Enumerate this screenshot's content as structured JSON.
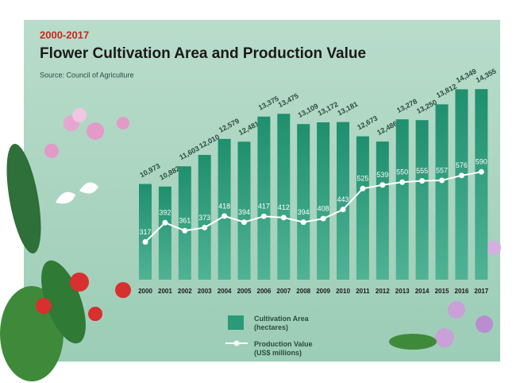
{
  "chart_data": {
    "type": "bar_line",
    "subtitle_top": "2000-2017",
    "title": "Flower Cultivation Area and Production Value",
    "source": "Source: Council of Agriculture",
    "categories": [
      "2000",
      "2001",
      "2002",
      "2003",
      "2004",
      "2005",
      "2006",
      "2007",
      "2008",
      "2009",
      "2010",
      "2011",
      "2012",
      "2013",
      "2014",
      "2015",
      "2016",
      "2017"
    ],
    "series": [
      {
        "name": "Cultivation Area (hectares)",
        "color": "#2a9a78",
        "type": "bar",
        "values": [
          10973,
          10882,
          11603,
          12010,
          12579,
          12481,
          13375,
          13475,
          13109,
          13172,
          13181,
          12673,
          12486,
          13278,
          13250,
          13812,
          14349,
          14355
        ],
        "value_labels": [
          "10,973",
          "10,882",
          "11,603",
          "12,010",
          "12,579",
          "12,481",
          "13,375",
          "13,475",
          "13,109",
          "13,172",
          "13,181",
          "12,673",
          "12,486",
          "13,278",
          "13,250",
          "13,812",
          "14,349",
          "14,355"
        ]
      },
      {
        "name": "Production Value (US$ millions)",
        "color": "#ffffff",
        "type": "line",
        "axis": "y2",
        "values": [
          317,
          392,
          361,
          373,
          418,
          394,
          417,
          412,
          394,
          408,
          443,
          525,
          539,
          550,
          555,
          557,
          576,
          590
        ]
      }
    ],
    "ylim": [
      7560,
      14700
    ],
    "y2lim": [
      170,
      950
    ]
  }
}
